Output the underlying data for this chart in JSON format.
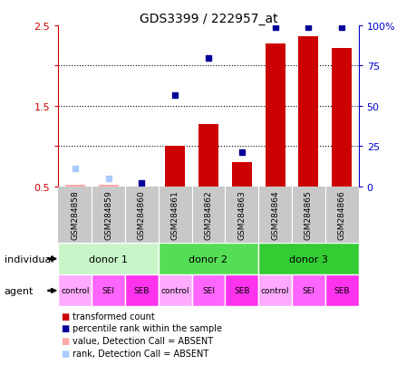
{
  "title": "GDS3399 / 222957_at",
  "samples": [
    "GSM284858",
    "GSM284859",
    "GSM284860",
    "GSM284861",
    "GSM284862",
    "GSM284863",
    "GSM284864",
    "GSM284865",
    "GSM284866"
  ],
  "red_values": [
    0.52,
    0.52,
    0.5,
    1.0,
    1.27,
    0.8,
    2.28,
    2.37,
    2.22
  ],
  "blue_values": [
    0.72,
    0.6,
    0.54,
    1.63,
    2.1,
    0.93,
    2.48,
    2.48,
    2.48
  ],
  "red_absent": [
    true,
    true,
    false,
    false,
    false,
    false,
    false,
    false,
    false
  ],
  "blue_absent": [
    true,
    true,
    false,
    false,
    false,
    false,
    false,
    false,
    false
  ],
  "ylim_left": [
    0.5,
    2.5
  ],
  "ylim_right": [
    0,
    100
  ],
  "yticks_left": [
    0.5,
    1.0,
    1.5,
    2.0,
    2.5
  ],
  "ytick_labels_left": [
    "0.5",
    "",
    "1.5",
    "",
    "2.5"
  ],
  "yticks_right": [
    0,
    25,
    50,
    75,
    100
  ],
  "ytick_labels_right": [
    "0",
    "25",
    "50",
    "75",
    "100%"
  ],
  "agents": [
    "control",
    "SEI",
    "SEB",
    "control",
    "SEI",
    "SEB",
    "control",
    "SEI",
    "SEB"
  ],
  "donor1_color": "#C8F5C8",
  "donor2_color": "#55DD55",
  "donor3_color": "#33CC33",
  "control_color": "#FFAAFF",
  "SEI_color": "#FF66FF",
  "SEB_color": "#FF33EE",
  "bar_color_present": "#CC0000",
  "bar_color_absent": "#FFAAAA",
  "dot_color_present": "#000099",
  "dot_color_absent": "#AACCFF",
  "left_axis_color": "#CC0000",
  "right_axis_color": "#0000CC",
  "sample_bg_color": "#C8C8C8",
  "bar_width": 0.6
}
